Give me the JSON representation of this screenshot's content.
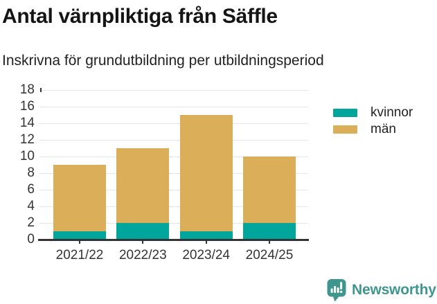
{
  "title": "Antal värnpliktiga från Säffle",
  "subtitle": "Inskrivna för grundutbildning per utbildningsperiod",
  "branding": {
    "name": "Newsworthy",
    "logo_icon": "bar-chart-speech-bubble-icon",
    "brand_color": "#3f968f"
  },
  "colors": {
    "kvinnor": "#00a59b",
    "man": "#dbae5a",
    "gridline": "#e4e4e4",
    "axis": "#333333",
    "text": "#333333"
  },
  "legend": {
    "items": [
      {
        "label": "kvinnor",
        "color": "#00a59b"
      },
      {
        "label": "män",
        "color": "#dbae5a"
      }
    ]
  },
  "chart_data": {
    "type": "bar",
    "stacked": true,
    "title": "Antal värnpliktiga från Säffle",
    "subtitle": "Inskrivna för grundutbildning per utbildningsperiod",
    "categories": [
      "2021/22",
      "2022/23",
      "2023/24",
      "2024/25"
    ],
    "series": [
      {
        "name": "kvinnor",
        "color": "#00a59b",
        "values": [
          1,
          2,
          1,
          2
        ]
      },
      {
        "name": "män",
        "color": "#dbae5a",
        "values": [
          8,
          9,
          14,
          8
        ]
      }
    ],
    "totals": [
      9,
      11,
      15,
      10
    ],
    "xlabel": "",
    "ylabel": "",
    "ylim": [
      0,
      18
    ],
    "ytick_step": 2,
    "yticks": [
      0,
      2,
      4,
      6,
      8,
      10,
      12,
      14,
      16,
      18
    ],
    "grid": true,
    "legend_position": "right"
  }
}
